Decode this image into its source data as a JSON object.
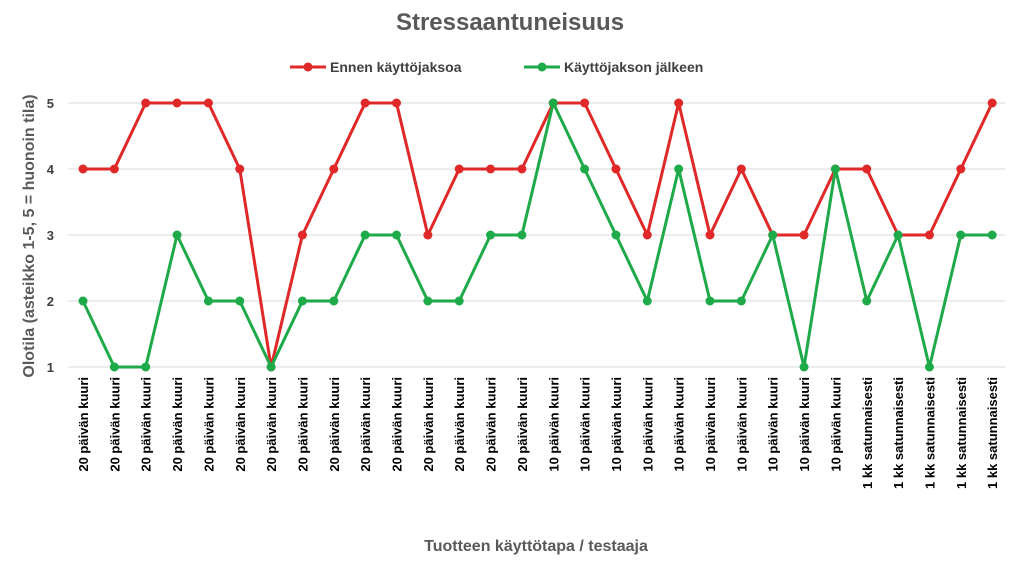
{
  "chart_data": {
    "type": "line",
    "title": "Stressaantuneisuus",
    "xlabel": "Tuotteen käyttötapa / testaaja",
    "ylabel": "Olotila (asteikko 1-5, 5 = huonoin tila)",
    "ylim": [
      1,
      5
    ],
    "yticks": [
      "1",
      "2",
      "3",
      "4",
      "5"
    ],
    "grid": true,
    "legend_position": "top",
    "categories": [
      "20 päivän kuuri",
      "20 päivän kuuri",
      "20 päivän kuuri",
      "20 päivän kuuri",
      "20 päivän kuuri",
      "20 päivän kuuri",
      "20 päivän kuuri",
      "20 päivän kuuri",
      "20 päivän kuuri",
      "20 päivän kuuri",
      "20 päivän kuuri",
      "20 päivän kuuri",
      "20 päivän kuuri",
      "20 päivän kuuri",
      "20 päivän kuuri",
      "10 päivän kuuri",
      "10 päivän kuuri",
      "10 päivän kuuri",
      "10 päivän kuuri",
      "10 päivän kuuri",
      "10 päivän kuuri",
      "10 päivän kuuri",
      "10 päivän kuuri",
      "10 päivän kuuri",
      "10 päivän kuuri",
      "1 kk satunnaisesti",
      "1 kk satunnaisesti",
      "1 kk satunnaisesti",
      "1 kk satunnaisesti",
      "1 kk satunnaisesti"
    ],
    "series": [
      {
        "name": "Ennen käyttöjaksoa",
        "color": "#e02828",
        "values": [
          4,
          4,
          5,
          5,
          5,
          4,
          1,
          3,
          4,
          5,
          5,
          3,
          4,
          4,
          4,
          5,
          5,
          4,
          3,
          5,
          3,
          4,
          3,
          3,
          4,
          4,
          3,
          3,
          4,
          5
        ]
      },
      {
        "name": "Käyttöjakson jälkeen",
        "color": "#1faa4a",
        "values": [
          2,
          1,
          1,
          3,
          2,
          2,
          1,
          2,
          2,
          3,
          3,
          2,
          2,
          3,
          3,
          5,
          4,
          3,
          2,
          4,
          2,
          2,
          3,
          1,
          4,
          2,
          3,
          1,
          3,
          3
        ]
      }
    ]
  }
}
